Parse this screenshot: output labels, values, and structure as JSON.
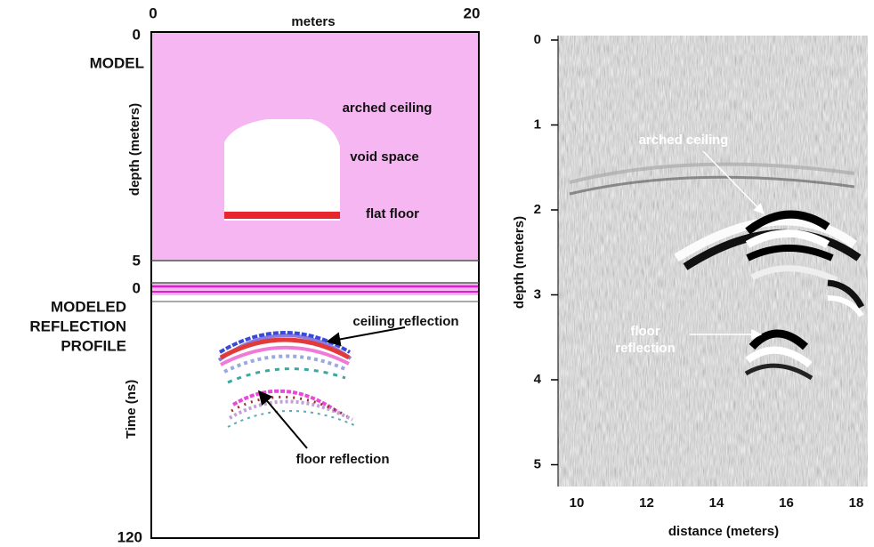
{
  "left_panel": {
    "top_axis": {
      "ticks": [
        0,
        20
      ],
      "label": "meters"
    },
    "model": {
      "title": "MODEL",
      "depth_ticks": [
        0,
        5
      ],
      "axis_label": "depth (meters)",
      "annotations": [
        "arched ceiling",
        "void space",
        "flat floor"
      ]
    },
    "profile": {
      "title": [
        "MODELED",
        "REFLECTION",
        "PROFILE"
      ],
      "time_ticks": [
        0,
        120
      ],
      "axis_label": "Time (ns)",
      "annotations": [
        "ceiling reflection",
        "floor reflection"
      ]
    }
  },
  "right_panel": {
    "yticks": [
      0,
      1,
      2,
      3,
      4,
      5
    ],
    "xticks": [
      10,
      12,
      14,
      16,
      18
    ],
    "ylabel": "depth (meters)",
    "xlabel": "distance (meters)",
    "annotations": {
      "ceiling": "arched ceiling",
      "floor": [
        "floor",
        "reflection"
      ]
    }
  }
}
